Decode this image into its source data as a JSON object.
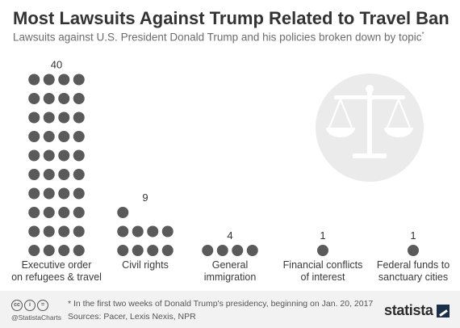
{
  "header": {
    "title": "Most Lawsuits Against Trump Related to Travel Ban",
    "subtitle": "Lawsuits against U.S. President Donald Trump and his policies broken down by topic",
    "subtitle_mark": "*"
  },
  "chart_data": {
    "type": "pictogram",
    "title": "Most Lawsuits Against Trump Related to Travel Ban",
    "subtitle": "Lawsuits against U.S. President Donald Trump and his policies broken down by topic*",
    "categories": [
      [
        "Executive order",
        "on refugees & travel"
      ],
      [
        "Civil rights"
      ],
      [
        "General",
        "immigration"
      ],
      [
        "Financial conflicts",
        "of interest"
      ],
      [
        "Federal funds to",
        "sanctuary cities"
      ]
    ],
    "values": [
      40,
      9,
      4,
      1,
      1
    ],
    "dot_color": "#5a5a5a",
    "icon": "scales-of-justice-icon"
  },
  "footer": {
    "note": "* In the first two weeks of Donald Trump's presidency, beginning on Jan. 20, 2017",
    "sources": "Sources: Pacer, Lexis Nexis, NPR",
    "handle": "@StatistaCharts",
    "brand": "statista",
    "license_icons": [
      "cc-icon",
      "by-icon",
      "nd-icon"
    ]
  }
}
